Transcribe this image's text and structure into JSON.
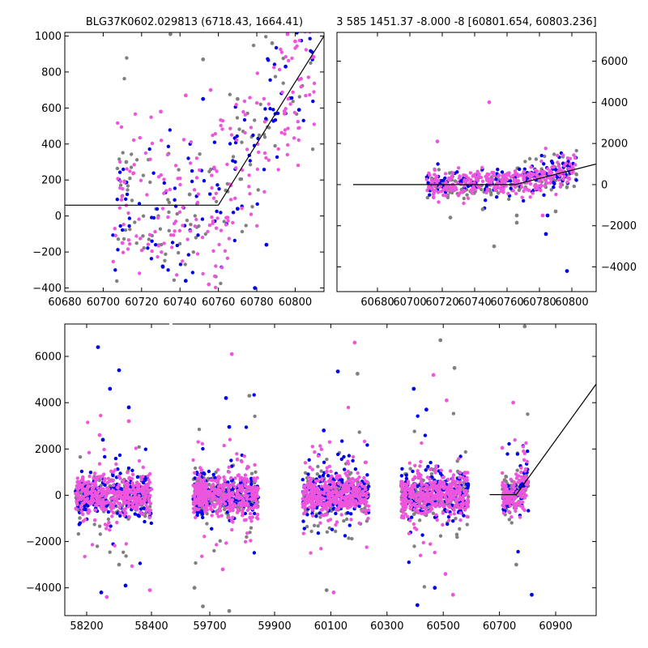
{
  "chart_data": [
    {
      "id": "zoom",
      "type": "scatter",
      "title": "BLG37K0602.029813 (6718.43, 1664.41)",
      "xlim": [
        60680,
        60815
      ],
      "ylim": [
        -420,
        1020
      ],
      "xticks": [
        60680,
        60700,
        60720,
        60740,
        60760,
        60780,
        60800
      ],
      "yticks": [
        -400,
        -200,
        0,
        200,
        400,
        600,
        800,
        1000
      ],
      "yaxis_side": "left",
      "model_line": [
        [
          60680,
          60
        ],
        [
          60760,
          60
        ],
        [
          60815,
          1000
        ]
      ],
      "scatter_cloud": {
        "seed": 11,
        "x_range": [
          60705,
          60810
        ],
        "baseline_end": 60760,
        "slope": 17.1,
        "base": 60,
        "spread": 230,
        "counts": {
          "gray": 110,
          "blue": 110,
          "pink": 220
        }
      },
      "series": [
        {
          "color": "#808080",
          "values": [
            [
              60735,
              1010
            ],
            [
              60752,
              870
            ],
            [
              60788,
              960
            ],
            [
              60770,
              650
            ],
            [
              60712,
              300
            ],
            [
              60745,
              120
            ]
          ]
        },
        {
          "color": "#0000ee",
          "values": [
            [
              60731,
              -280
            ],
            [
              60743,
              -360
            ],
            [
              60779,
              -400
            ],
            [
              60752,
              650
            ],
            [
              60795,
              830
            ],
            [
              60802,
              590
            ],
            [
              60770,
              40
            ],
            [
              60785,
              -160
            ]
          ]
        },
        {
          "color": "#ee55dd",
          "values": [
            [
              60730,
              580
            ],
            [
              60743,
              670
            ],
            [
              60756,
              700
            ],
            [
              60796,
              1010
            ],
            [
              60710,
              -150
            ],
            [
              60755,
              -380
            ],
            [
              60800,
              970
            ]
          ]
        }
      ]
    },
    {
      "id": "season",
      "type": "scatter",
      "title": "3 585 1451.37 -8.000 -8 [60801.654, 60803.236]",
      "xlim": [
        60655,
        60815
      ],
      "ylim": [
        -5200,
        7400
      ],
      "xticks": [
        60680,
        60700,
        60720,
        60740,
        60760,
        60780,
        60800
      ],
      "yticks": [
        -4000,
        -2000,
        0,
        2000,
        4000,
        6000
      ],
      "yaxis_side": "right",
      "model_line": [
        [
          60665,
          0
        ],
        [
          60765,
          0
        ],
        [
          60815,
          1000
        ]
      ],
      "scatter_cloud": {
        "seed": 23,
        "x_range": [
          60710,
          60803
        ],
        "baseline_end": 60760,
        "slope": 17.1,
        "base": 60,
        "spread": 330,
        "counts": {
          "gray": 160,
          "blue": 150,
          "pink": 300
        }
      },
      "series": [
        {
          "color": "#808080",
          "values": [
            [
              60725,
              -1600
            ],
            [
              60745,
              -1200
            ],
            [
              60766,
              -1850
            ],
            [
              60790,
              -1300
            ],
            [
              60752,
              -3000
            ],
            [
              60766,
              -1500
            ]
          ]
        },
        {
          "color": "#0000ee",
          "values": [
            [
              60797,
              -4200
            ],
            [
              60785,
              -1500
            ],
            [
              60784,
              -2400
            ]
          ]
        },
        {
          "color": "#ee55dd",
          "values": [
            [
              60749,
              4000
            ],
            [
              60717,
              2100
            ],
            [
              60782,
              -1500
            ]
          ]
        }
      ]
    },
    {
      "id": "full",
      "type": "scatter",
      "title": "",
      "xlim": [
        58120,
        61050
      ],
      "ylim": [
        -5200,
        7400
      ],
      "xticks": [
        58200,
        58400,
        59700,
        59900,
        60100,
        60300,
        60500,
        60700,
        60900
      ],
      "yticks": [
        -4000,
        -2000,
        0,
        2000,
        4000,
        6000
      ],
      "yaxis_side": "left",
      "model_line": [
        [
          60665,
          30
        ],
        [
          60760,
          30
        ],
        [
          61050,
          4900
        ]
      ],
      "scatter_cloud": {
        "seed": 37,
        "spread": 430,
        "seasons": [
          {
            "x_range": [
              58165,
              58400
            ],
            "n": [
              190,
              190,
              380
            ]
          },
          {
            "x_range": [
              59610,
              59850
            ],
            "n": [
              200,
              200,
              400
            ]
          },
          {
            "x_range": [
              60000,
              60235
            ],
            "n": [
              200,
              200,
              400
            ]
          },
          {
            "x_range": [
              60350,
              60590
            ],
            "n": [
              200,
              200,
              400
            ]
          },
          {
            "x_range": [
              60710,
              60803
            ],
            "n": [
              70,
              60,
              130
            ]
          }
        ]
      },
      "series": [
        {
          "color": "#0000ee",
          "values": [
            [
              58235,
              6400
            ],
            [
              58300,
              5400
            ],
            [
              58272,
              4600
            ],
            [
              58330,
              3800
            ],
            [
              58250,
              2400
            ],
            [
              58245,
              -4200
            ],
            [
              58320,
              -3900
            ],
            [
              59760,
              2950
            ],
            [
              59750,
              4200
            ],
            [
              60125,
              5350
            ],
            [
              60395,
              4600
            ],
            [
              60440,
              3700
            ],
            [
              60408,
              -4750
            ],
            [
              60470,
              -4000
            ],
            [
              60815,
              -4300
            ],
            [
              60075,
              2800
            ]
          ]
        },
        {
          "color": "#ee55dd",
          "values": [
            [
              58262,
              -4400
            ],
            [
              58240,
              2600
            ],
            [
              58330,
              3200
            ],
            [
              58395,
              -4100
            ],
            [
              59768,
              6100
            ],
            [
              60185,
              6600
            ],
            [
              60110,
              -4200
            ],
            [
              60465,
              5200
            ],
            [
              60512,
              4100
            ],
            [
              60535,
              -4300
            ],
            [
              60749,
              4000
            ],
            [
              60710,
              2050
            ],
            [
              59740,
              -3200
            ],
            [
              60508,
              -3400
            ]
          ]
        },
        {
          "color": "#808080",
          "values": [
            [
              59615,
              -4000
            ],
            [
              59645,
              -4800
            ],
            [
              59760,
              -5000
            ],
            [
              59822,
              4300
            ],
            [
              60195,
              5250
            ],
            [
              60490,
              6700
            ],
            [
              60540,
              5500
            ],
            [
              58300,
              -3000
            ],
            [
              60085,
              -4100
            ],
            [
              60760,
              -3000
            ],
            [
              60790,
              7300
            ]
          ]
        }
      ]
    }
  ]
}
